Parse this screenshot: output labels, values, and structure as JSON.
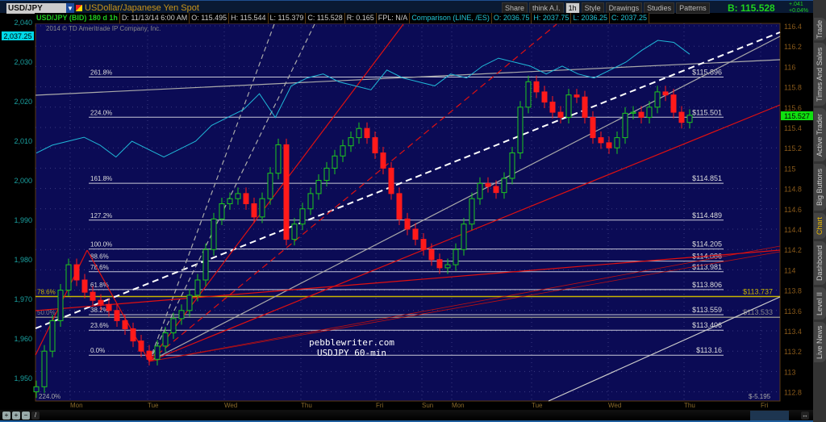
{
  "header": {
    "symbol": "USD/JPY",
    "description": "USDollar/Japanese Yen Spot",
    "toolbar": [
      "Share",
      "think A.I.",
      "1h",
      "Style",
      "Drawings",
      "Studies",
      "Patterns"
    ],
    "bid": "B: 115.528",
    "change": "+.041",
    "change_pct": "+0.04%"
  },
  "info_bar": {
    "series": "USD/JPY (BID) 180 d 1h",
    "date": "D: 11/13/14 6:00 AM",
    "open": "O: 115.495",
    "high": "H: 115.544",
    "low": "L: 115.379",
    "close": "C: 115.528",
    "range": "R: 0.165",
    "fpl": "FPL: N/A",
    "comparison": "Comparison (LINE, /ES)",
    "c_open": "O: 2036.75",
    "c_high": "H: 2037.75",
    "c_low": "L: 2036.25",
    "c_close": "C: 2037.25"
  },
  "copyright": "2014 © TD Ameritrade IP Company, Inc.",
  "watermark": [
    "pebblewriter.com",
    "USDJPY 60-min"
  ],
  "sidebar": [
    "Trade",
    "Times And Sales",
    "Active Trader",
    "Big Buttons",
    "Chart",
    "Dashboard",
    "Level II",
    "Live News"
  ],
  "sidebar_active": "Chart",
  "colors": {
    "background": "#0b0b55",
    "up": "#1ec81e",
    "down": "#ff1a1a",
    "comparison": "#20b8d8",
    "fib": "#c8c8d8",
    "highlight": "#c8b400",
    "axis_left": "#1aa0a0",
    "axis_right": "#8a5a1a"
  },
  "chart_data": {
    "type": "candlestick",
    "title": "USD/JPY (BID) 180 d 1h",
    "x_ticks": [
      "Mon",
      "Tue",
      "Wed",
      "Thu",
      "Fri",
      "Sun",
      "Mon",
      "Tue",
      "Wed",
      "Thu",
      "Fri"
    ],
    "y_right": {
      "range": [
        112.8,
        116.4
      ],
      "ticks": [
        "116.4",
        "116.2",
        "116",
        "115.8",
        "115.6",
        "115.4",
        "115.2",
        "115",
        "114.8",
        "114.6",
        "114.4",
        "114.2",
        "114",
        "113.8",
        "113.6",
        "113.4",
        "113.2",
        "113",
        "112.8"
      ]
    },
    "y_left": {
      "range": [
        1948,
        2041
      ],
      "ticks": [
        "2,040",
        "2,030",
        "2,020",
        "2,010",
        "2,000",
        "1,990",
        "1,980",
        "1,970",
        "1,960",
        "1,950"
      ]
    },
    "last_price": "115.527",
    "last_comparison": "2,037.25",
    "closes": [
      112.85,
      113.2,
      113.5,
      113.8,
      114.05,
      113.9,
      113.78,
      113.7,
      113.66,
      113.6,
      113.5,
      113.42,
      113.3,
      113.2,
      113.12,
      113.25,
      113.38,
      113.52,
      113.6,
      113.75,
      113.9,
      114.2,
      114.5,
      114.65,
      114.7,
      114.75,
      114.65,
      114.52,
      114.7,
      114.95,
      115.23,
      114.3,
      114.45,
      114.6,
      114.75,
      114.88,
      115.0,
      115.12,
      115.22,
      115.3,
      115.39,
      115.3,
      115.15,
      115.0,
      114.75,
      114.5,
      114.4,
      114.3,
      114.2,
      114.1,
      114.02,
      114.05,
      114.2,
      114.45,
      114.7,
      114.85,
      114.82,
      114.76,
      114.9,
      115.15,
      115.6,
      115.85,
      115.75,
      115.65,
      115.55,
      115.5,
      115.72,
      115.7,
      115.5,
      115.3,
      115.25,
      115.2,
      115.3,
      115.54,
      115.55,
      115.5,
      115.6,
      115.75,
      115.72,
      115.55,
      115.45,
      115.52
    ],
    "comparison": {
      "name": "/ES",
      "type": "line",
      "values": [
        2007,
        2009,
        2010,
        2011,
        2009,
        2006,
        2010,
        2008,
        2006,
        2008,
        2010,
        2014,
        2016,
        2018,
        2022,
        2016,
        2024,
        2026,
        2027,
        2025,
        2024,
        2023,
        2028,
        2026,
        2025,
        2024,
        2027,
        2026,
        2029,
        2031,
        2030,
        2029,
        2027,
        2029,
        2027,
        2026,
        2028,
        2030,
        2033,
        2035.5,
        2035,
        2032
      ]
    },
    "fib_levels": [
      {
        "label": "261.8%",
        "price": "$115.896",
        "value": 115.896
      },
      {
        "label": "224.0%",
        "price": "$115.501",
        "value": 115.501
      },
      {
        "label": "161.8%",
        "price": "$114.851",
        "value": 114.851
      },
      {
        "label": "127.2%",
        "price": "$114.489",
        "value": 114.489
      },
      {
        "label": "100.0%",
        "price": "$114.205",
        "value": 114.205
      },
      {
        "label": "88.6%",
        "price": "$114.086",
        "value": 114.086
      },
      {
        "label": "78.6%",
        "price": "$113.981",
        "value": 113.981
      },
      {
        "label": "61.8%",
        "price": "$113.806",
        "value": 113.806
      },
      {
        "label": "38.2%",
        "price": "$113.559",
        "value": 113.559
      },
      {
        "label": "23.6%",
        "price": "$113.406",
        "value": 113.406
      },
      {
        "label": "0.0%",
        "price": "$113.16",
        "value": 113.16
      }
    ],
    "fib_secondary": [
      {
        "label": "78.6%",
        "price": "$113.737",
        "value": 113.737,
        "color": "#c8b400"
      },
      {
        "label": "50.0%",
        "price": "$113.533",
        "value": 113.533,
        "color": "#888"
      }
    ],
    "extra_labels": {
      "bottom_left": "224.0%",
      "bottom_right": "$-5.195"
    }
  }
}
